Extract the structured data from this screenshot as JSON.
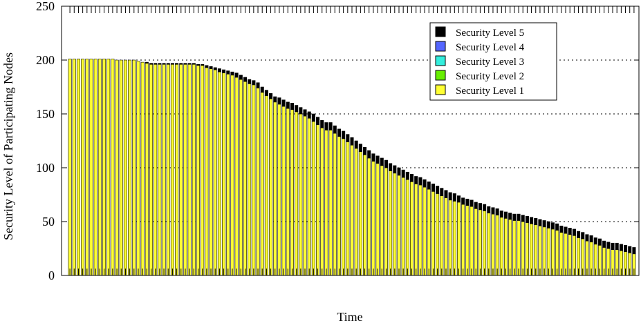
{
  "chart_data": {
    "type": "bar",
    "stacked": true,
    "xlabel": "Time",
    "ylabel": "Security Level of Participating Nodes",
    "ylim": [
      0,
      250
    ],
    "yticks": [
      0,
      50,
      100,
      150,
      200,
      250
    ],
    "grid": "horizontal dotted at 50, 100, 150, 200",
    "legend_position": "top-right",
    "colors": {
      "Security Level 1": "#ffff33",
      "Security Level 2": "#66ee00",
      "Security Level 3": "#33eedd",
      "Security Level 4": "#5566ff",
      "Security Level 5": "#000000"
    },
    "series": [
      {
        "name": "Security Level 5",
        "values": [
          0,
          0,
          0,
          0,
          0,
          0,
          0,
          0,
          0,
          0,
          0,
          0,
          0,
          0,
          0,
          0,
          0,
          0,
          1,
          1,
          1,
          1,
          1,
          1,
          1,
          1,
          1,
          1,
          1,
          1,
          1,
          1,
          2,
          2,
          2,
          3,
          3,
          3,
          3,
          4,
          4,
          4,
          4,
          4,
          5,
          5,
          5,
          5,
          5,
          6,
          6,
          6,
          6,
          6,
          6,
          6,
          6,
          7,
          7,
          7,
          7,
          7,
          7,
          7,
          7,
          7,
          7,
          7,
          7,
          7,
          7,
          7,
          7,
          7,
          7,
          7,
          7,
          7,
          7,
          7,
          7,
          7,
          7,
          7,
          7,
          7,
          7,
          7,
          7,
          7,
          7,
          6,
          6,
          6,
          6,
          6,
          6,
          6,
          6,
          6,
          6,
          6,
          6,
          6,
          6,
          6,
          6,
          6,
          6,
          6,
          6,
          6,
          6,
          6,
          6,
          6,
          6,
          6,
          6,
          6,
          6,
          6,
          6,
          6,
          6,
          6,
          6,
          6,
          6,
          6,
          6,
          6,
          6
        ]
      },
      {
        "name": "Security Level 4",
        "values": [
          0,
          0,
          0,
          0,
          0,
          0,
          0,
          0,
          0,
          0,
          0,
          0,
          0,
          0,
          0,
          0,
          0,
          0,
          0,
          0,
          0,
          0,
          0,
          0,
          0,
          0,
          0,
          0,
          0,
          0,
          0,
          0,
          0,
          0,
          0,
          0,
          0,
          0,
          0,
          0,
          0,
          0,
          0,
          0,
          0,
          0,
          0,
          0,
          0,
          0,
          0,
          0,
          0,
          0,
          0,
          0,
          0,
          0,
          0,
          0,
          0,
          0,
          0,
          0,
          0,
          0,
          0,
          0,
          0,
          0,
          0,
          0,
          0,
          0,
          0,
          0,
          0,
          0,
          0,
          0,
          0,
          0,
          0,
          0,
          0,
          0,
          0,
          0,
          0,
          0,
          0,
          0,
          0,
          0,
          0,
          0,
          0,
          0,
          0,
          0,
          0,
          0,
          0,
          0,
          0,
          0,
          0,
          0,
          0,
          0,
          0,
          0,
          0,
          0,
          0,
          0,
          0,
          0,
          0,
          0,
          0,
          0,
          0,
          0,
          0,
          0,
          0,
          0,
          0,
          0,
          0,
          0,
          0
        ]
      },
      {
        "name": "Security Level 3",
        "values": [
          0,
          0,
          0,
          0,
          0,
          0,
          0,
          0,
          0,
          0,
          0,
          0,
          0,
          0,
          0,
          0,
          0,
          0,
          0,
          0,
          0,
          0,
          0,
          0,
          0,
          0,
          0,
          0,
          0,
          0,
          0,
          0,
          0,
          0,
          0,
          0,
          0,
          0,
          0,
          0,
          0,
          0,
          0,
          0,
          0,
          0,
          0,
          0,
          0,
          0,
          0,
          0,
          0,
          0,
          0,
          0,
          0,
          0,
          0,
          0,
          0,
          0,
          0,
          0,
          0,
          0,
          0,
          0,
          0,
          0,
          0,
          0,
          0,
          0,
          0,
          0,
          0,
          0,
          0,
          0,
          0,
          0,
          0,
          0,
          0,
          0,
          0,
          0,
          0,
          0,
          0,
          0,
          0,
          0,
          0,
          0,
          0,
          0,
          0,
          0,
          0,
          0,
          0,
          0,
          0,
          0,
          0,
          0,
          0,
          0,
          0,
          0,
          0,
          0,
          0,
          0,
          0,
          0,
          0,
          0,
          0,
          0,
          0,
          0,
          0,
          0,
          0,
          0,
          0,
          0,
          0,
          0,
          0
        ]
      },
      {
        "name": "Security Level 2",
        "values": [
          0,
          0,
          0,
          0,
          0,
          0,
          0,
          0,
          0,
          0,
          0,
          0,
          0,
          0,
          0,
          0,
          0,
          0,
          0,
          0,
          0,
          0,
          0,
          0,
          0,
          0,
          0,
          0,
          0,
          0,
          0,
          0,
          0,
          0,
          0,
          0,
          0,
          0,
          0,
          0,
          0,
          0,
          0,
          0,
          0,
          0,
          0,
          0,
          0,
          0,
          0,
          0,
          0,
          0,
          0,
          0,
          0,
          0,
          0,
          0,
          0,
          0,
          0,
          0,
          0,
          0,
          0,
          0,
          0,
          0,
          0,
          0,
          0,
          0,
          0,
          0,
          0,
          0,
          0,
          0,
          0,
          0,
          0,
          0,
          0,
          0,
          0,
          0,
          0,
          0,
          0,
          0,
          0,
          0,
          0,
          0,
          0,
          0,
          0,
          0,
          0,
          0,
          0,
          0,
          0,
          0,
          0,
          0,
          0,
          0,
          0,
          0,
          0,
          0,
          0,
          0,
          0,
          0,
          0,
          0,
          0,
          0,
          0,
          0,
          0,
          0,
          0,
          0,
          0,
          0,
          0,
          0,
          0
        ]
      },
      {
        "name": "Security Level 1",
        "values": [
          201,
          201,
          201,
          201,
          201,
          201,
          201,
          201,
          201,
          201,
          201,
          200,
          200,
          200,
          200,
          200,
          199,
          198,
          197,
          196,
          196,
          196,
          196,
          196,
          196,
          196,
          196,
          196,
          196,
          196,
          195,
          195,
          193,
          192,
          191,
          189,
          188,
          187,
          186,
          184,
          182,
          180,
          178,
          177,
          174,
          170,
          167,
          164,
          161,
          159,
          157,
          155,
          154,
          152,
          150,
          148,
          146,
          143,
          140,
          137,
          135,
          135,
          132,
          129,
          127,
          124,
          121,
          118,
          115,
          112,
          109,
          106,
          104,
          102,
          100,
          97,
          95,
          93,
          91,
          89,
          87,
          85,
          84,
          82,
          80,
          78,
          76,
          74,
          72,
          70,
          69,
          68,
          66,
          65,
          64,
          62,
          61,
          60,
          58,
          57,
          56,
          54,
          53,
          52,
          51,
          51,
          50,
          49,
          48,
          47,
          46,
          45,
          44,
          43,
          42,
          40,
          39,
          38,
          37,
          35,
          34,
          32,
          31,
          29,
          28,
          26,
          25,
          24,
          24,
          23,
          22,
          21,
          20
        ]
      }
    ]
  }
}
